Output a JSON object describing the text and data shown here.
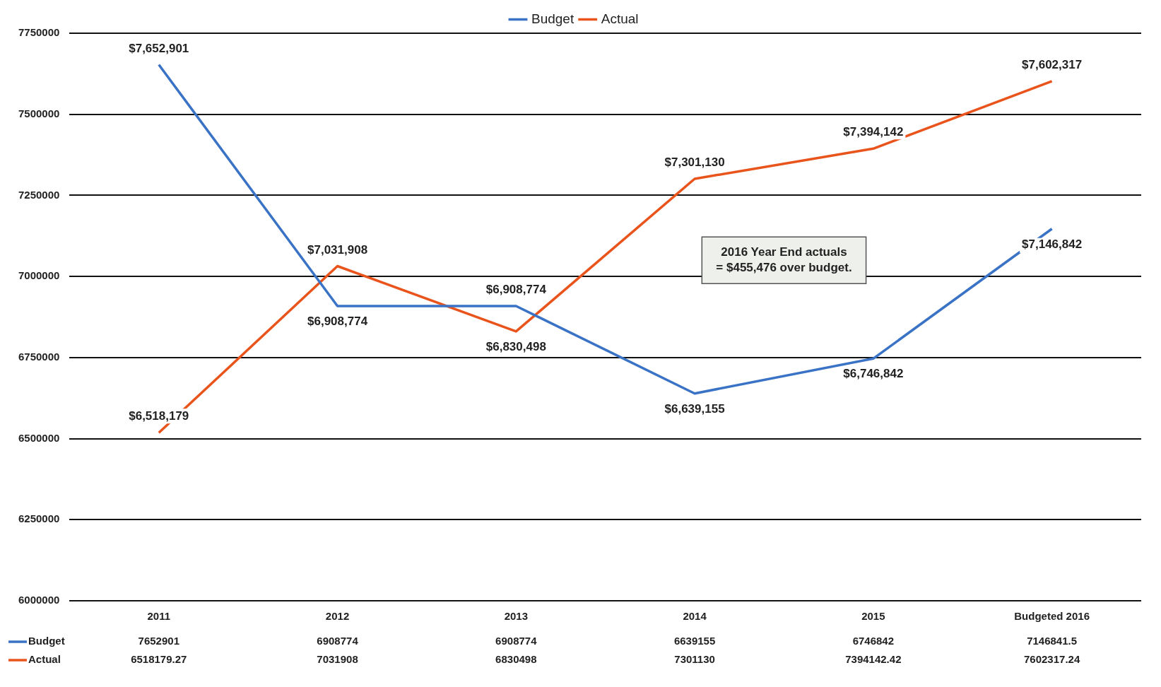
{
  "chart_data": {
    "type": "line",
    "categories": [
      "2011",
      "2012",
      "2013",
      "2014",
      "2015",
      "Budgeted 2016"
    ],
    "series": [
      {
        "name": "Budget",
        "color": "#3a73c5",
        "values": [
          7652901,
          6908774,
          6908774,
          6639155,
          6746842,
          7146841.5
        ]
      },
      {
        "name": "Actual",
        "color": "#e8541c",
        "values": [
          6518179.27,
          7031908,
          6830498,
          7301130,
          7394142.42,
          7602317.24
        ]
      }
    ],
    "ylim": [
      6000000,
      7750000
    ],
    "yticks": [
      6000000,
      6250000,
      6500000,
      6750000,
      7000000,
      7250000,
      7500000,
      7750000
    ],
    "grid": "y",
    "legend": "top",
    "marker": "none",
    "line_style": "solid",
    "data_labels": true,
    "annotations": [
      {
        "text": "$7,652,901",
        "x": "2011",
        "y": 7652901
      },
      {
        "text": "$6,908,774",
        "x": "2012",
        "y": 6908774
      },
      {
        "text": "$6,908,774",
        "x": "2013",
        "y": 6908774
      },
      {
        "text": "$6,639,155",
        "x": "2014",
        "y": 6639155
      },
      {
        "text": "$6,746,842",
        "x": "2015",
        "y": 6746842
      },
      {
        "text": "$7,146,842",
        "x": "Budgeted 2016",
        "y": 7146841.5
      },
      {
        "text": "$6,518,179",
        "x": "2011",
        "y": 6518179.27
      },
      {
        "text": "$7,031,908",
        "x": "2012",
        "y": 7031908
      },
      {
        "text": "$6,830,498",
        "x": "2013",
        "y": 6830498
      },
      {
        "text": "$7,301,130",
        "x": "2014",
        "y": 7301130
      },
      {
        "text": "$7,394,142",
        "x": "2015",
        "y": 7394142.42
      },
      {
        "text": "$7,602,317",
        "x": "Budgeted 2016",
        "y": 7602317.24
      },
      "2016 Year End actuals = $455,476 over budget."
    ]
  }
}
